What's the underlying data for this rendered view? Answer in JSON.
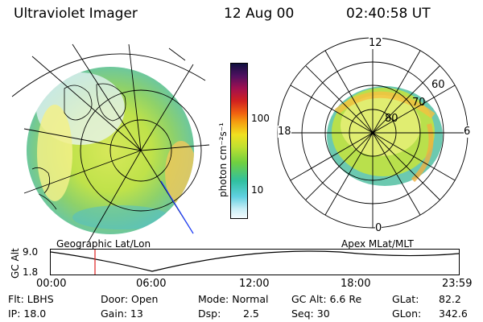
{
  "header": {
    "instrument": "Ultraviolet Imager",
    "date": "12 Aug 00",
    "time": "02:40:58 UT"
  },
  "geo_map": {
    "label": "Geographic Lat/Lon"
  },
  "colorbar": {
    "unit_label": "photon cm⁻²s⁻¹",
    "tick_100": "100",
    "tick_10": "10"
  },
  "polar_plot": {
    "label": "Apex MLat/MLT",
    "mlt_12": "12",
    "mlt_18": "18",
    "mlt_6": "6",
    "mlt_0": "0",
    "lat_60": "60",
    "lat_70": "70",
    "lat_80": "80"
  },
  "altitude_plot": {
    "ylabel": "GC Alt",
    "ymax": "9.0",
    "ymin": "1.8",
    "xticks": [
      "00:00",
      "06:00",
      "12:00",
      "18:00",
      "23:59"
    ]
  },
  "status": {
    "flt": "Flt: LBHS",
    "ip": "IP: 18.0",
    "door": "Door: Open",
    "gain": "Gain: 13",
    "mode": "Mode: Normal",
    "dsp_label": "Dsp:",
    "dsp_value": "2.5",
    "gc_alt": "GC Alt: 6.6 Re",
    "seq": "Seq: 30",
    "glat_label": "GLat:",
    "glat_value": "82.2",
    "glon_label": "GLon:",
    "glon_value": "342.6"
  },
  "colors": {
    "accent_red": "#e02020",
    "track_blue": "#2040ff"
  }
}
